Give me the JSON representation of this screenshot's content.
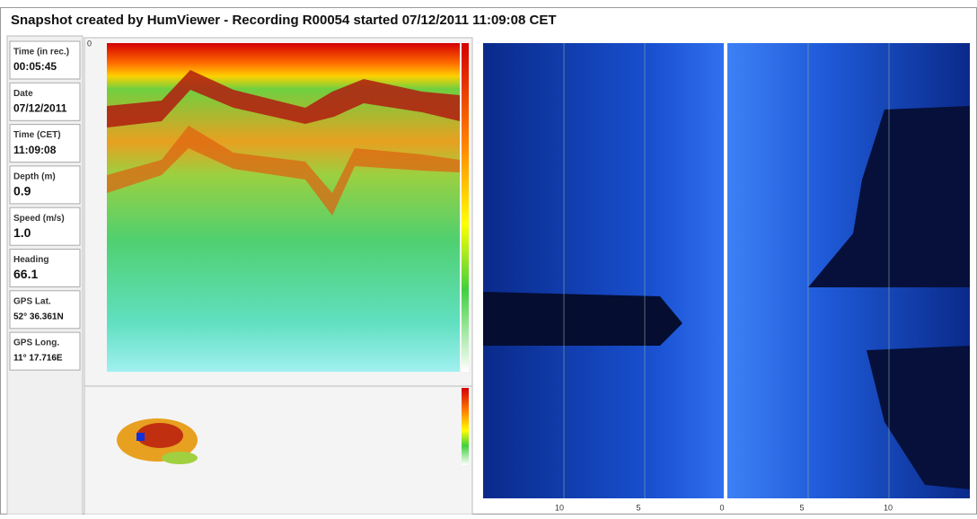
{
  "header": {
    "title": "Snapshot created by HumViewer - Recording R00054 started 07/12/2011 11:09:08 CET"
  },
  "fields": [
    {
      "label": "Time (in rec.)",
      "value": "00:05:45"
    },
    {
      "label": "Date",
      "value": "07/12/2011"
    },
    {
      "label": "Time (CET)",
      "value": "11:09:08"
    },
    {
      "label": "Depth (m)",
      "value": "0.9"
    },
    {
      "label": "Speed (m/s)",
      "value": "1.0"
    },
    {
      "label": "Heading",
      "value": "66.1"
    },
    {
      "label": "GPS Lat.",
      "value": "52° 36.361N"
    },
    {
      "label": "GPS Long.",
      "value": "11° 17.716E"
    }
  ],
  "echogram": {
    "depth_label": "0"
  },
  "sidescan": {
    "axis_labels": [
      "10",
      "5",
      "0",
      "5",
      "10"
    ]
  }
}
